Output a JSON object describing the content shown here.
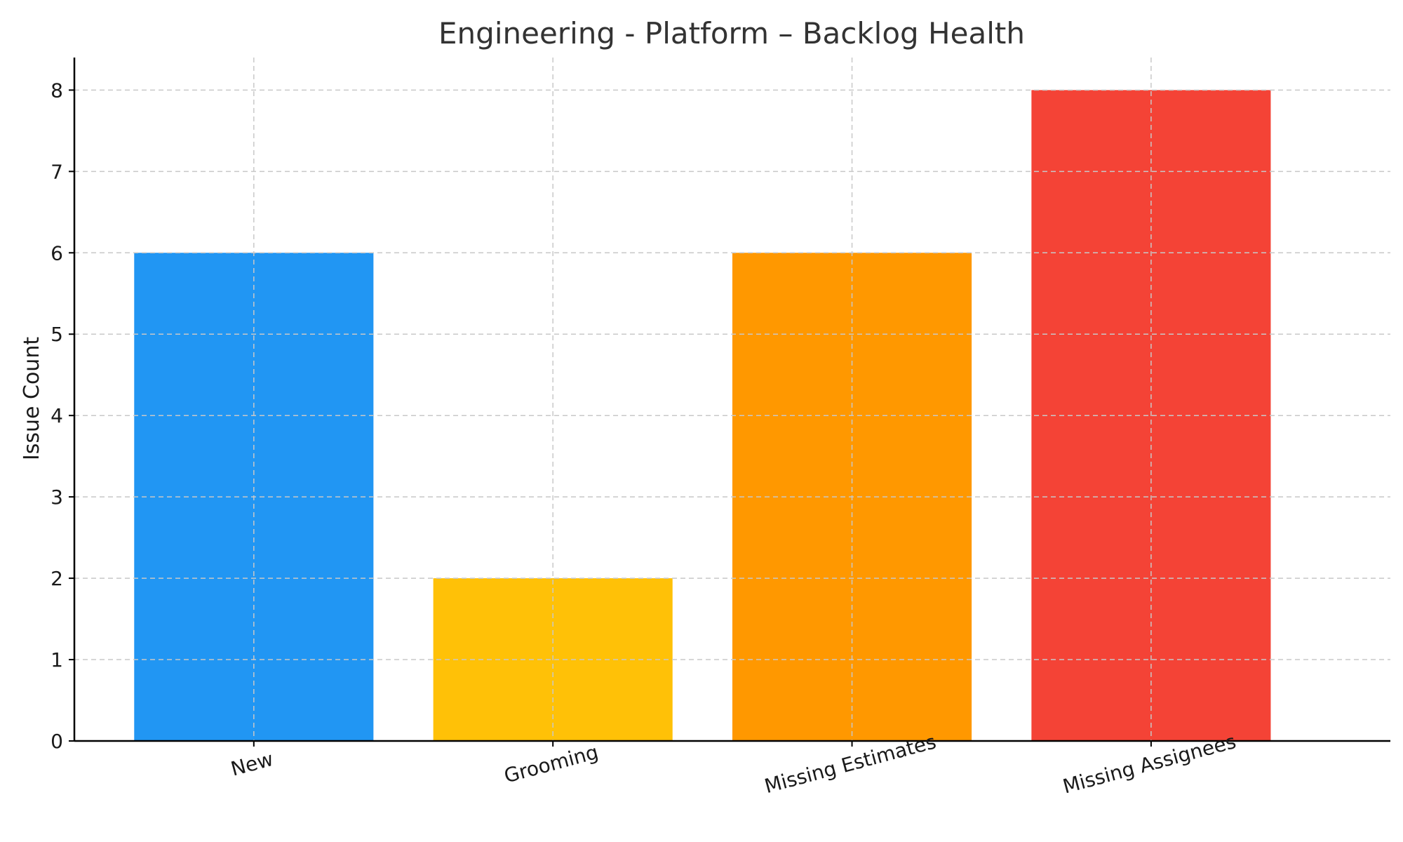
{
  "chart_data": {
    "type": "bar",
    "title": "Engineering - Platform – Backlog Health",
    "xlabel": "",
    "ylabel": "Issue Count",
    "categories": [
      "New",
      "Grooming",
      "Missing Estimates",
      "Missing Assignees"
    ],
    "values": [
      6,
      2,
      6,
      8
    ],
    "colors": [
      "#2196F3",
      "#FFC107",
      "#FF9800",
      "#F44336"
    ],
    "ylim": [
      0,
      8.4
    ],
    "yticks": [
      0,
      1,
      2,
      3,
      4,
      5,
      6,
      7,
      8
    ],
    "grid": true,
    "legend": "none"
  }
}
